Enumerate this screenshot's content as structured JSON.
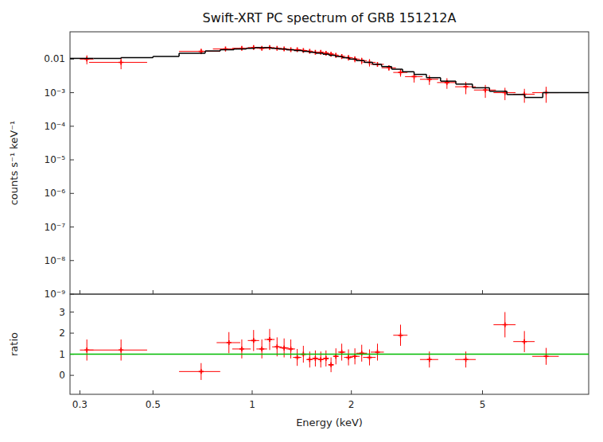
{
  "chart_data": [
    {
      "type": "scatter",
      "title": "Swift-XRT PC spectrum of GRB 151212A",
      "ylabel": "counts s⁻¹ keV⁻¹",
      "log": true,
      "xlim": [
        0.28,
        10.5
      ],
      "xticks": [
        0.3,
        0.5,
        1,
        2,
        5
      ],
      "ylim": [
        1e-09,
        0.065
      ],
      "yticks": [
        {
          "value": 1e-09,
          "label": "10⁻⁹"
        },
        {
          "value": 1e-08,
          "label": "10⁻⁸"
        },
        {
          "value": 1e-07,
          "label": "10⁻⁷"
        },
        {
          "value": 1e-06,
          "label": "10⁻⁶"
        },
        {
          "value": 1e-05,
          "label": "10⁻⁵"
        },
        {
          "value": 0.0001,
          "label": "10⁻⁴"
        },
        {
          "value": 0.001,
          "label": "10⁻³"
        },
        0.01
      ],
      "tick_labels": "y",
      "series": [
        {
          "type": "scatter",
          "color": "#ff0000",
          "marker": "plus",
          "x": [
            0.315,
            0.4,
            0.7,
            0.83,
            0.93,
            1.01,
            1.07,
            1.13,
            1.19,
            1.25,
            1.31,
            1.37,
            1.43,
            1.495,
            1.555,
            1.615,
            1.675,
            1.735,
            1.795,
            1.87,
            1.96,
            2.05,
            2.15,
            2.27,
            2.4,
            2.6,
            2.82,
            3.1,
            3.45,
            3.9,
            4.45,
            5.1,
            5.85,
            6.7,
            7.8
          ],
          "x_err_low": [
            0.015,
            0.08,
            0.1,
            0.07,
            0.06,
            0.04,
            0.04,
            0.04,
            0.04,
            0.04,
            0.04,
            0.04,
            0.04,
            0.035,
            0.035,
            0.035,
            0.035,
            0.035,
            0.035,
            0.05,
            0.06,
            0.07,
            0.08,
            0.1,
            0.11,
            0.13,
            0.14,
            0.19,
            0.22,
            0.26,
            0.32,
            0.39,
            0.45,
            0.5,
            0.72
          ],
          "x_err_high": [
            0.015,
            0.08,
            0.1,
            0.07,
            0.06,
            0.04,
            0.04,
            0.04,
            0.04,
            0.04,
            0.04,
            0.04,
            0.04,
            0.035,
            0.035,
            0.035,
            0.035,
            0.035,
            0.035,
            0.05,
            0.06,
            0.07,
            0.08,
            0.1,
            0.11,
            0.13,
            0.14,
            0.19,
            0.22,
            0.26,
            0.32,
            0.39,
            0.45,
            0.5,
            0.72
          ],
          "values": [
            0.01,
            0.008,
            0.017,
            0.02,
            0.021,
            0.022,
            0.021,
            0.022,
            0.021,
            0.02,
            0.019,
            0.019,
            0.018,
            0.017,
            0.016,
            0.016,
            0.015,
            0.014,
            0.013,
            0.012,
            0.011,
            0.01,
            0.009,
            0.008,
            0.007,
            0.0055,
            0.004,
            0.003,
            0.0025,
            0.002,
            0.0015,
            0.0012,
            0.001,
            0.0009,
            0.001
          ],
          "err_low": [
            0.003,
            0.003,
            0.003,
            0.003,
            0.002,
            0.002,
            0.002,
            0.002,
            0.002,
            0.002,
            0.002,
            0.002,
            0.002,
            0.002,
            0.002,
            0.002,
            0.002,
            0.002,
            0.002,
            0.002,
            0.002,
            0.002,
            0.002,
            0.002,
            0.001,
            0.001,
            0.001,
            0.001,
            0.0008,
            0.0007,
            0.0006,
            0.0005,
            0.0004,
            0.0004,
            0.0005
          ],
          "err_high": [
            0.003,
            0.003,
            0.003,
            0.003,
            0.002,
            0.002,
            0.002,
            0.002,
            0.002,
            0.002,
            0.002,
            0.002,
            0.002,
            0.002,
            0.002,
            0.002,
            0.002,
            0.002,
            0.002,
            0.002,
            0.002,
            0.002,
            0.002,
            0.002,
            0.001,
            0.001,
            0.001,
            0.001,
            0.0008,
            0.0007,
            0.0006,
            0.0005,
            0.0004,
            0.0004,
            0.0005
          ]
        },
        {
          "type": "step",
          "color": "#000000",
          "bins": [
            0.28,
            0.33,
            0.4,
            0.5,
            0.6,
            0.72,
            0.8,
            0.88,
            0.96,
            1.02,
            1.08,
            1.14,
            1.2,
            1.27,
            1.34,
            1.42,
            1.49,
            1.56,
            1.64,
            1.71,
            1.79,
            1.88,
            1.97,
            2.07,
            2.19,
            2.32,
            2.47,
            2.65,
            2.86,
            3.1,
            3.38,
            3.73,
            4.15,
            4.66,
            5.25,
            5.93,
            6.72,
            7.62,
            10.5
          ],
          "values": [
            0.0105,
            0.0105,
            0.011,
            0.012,
            0.015,
            0.0175,
            0.019,
            0.02,
            0.021,
            0.022,
            0.022,
            0.021,
            0.02,
            0.019,
            0.018,
            0.017,
            0.016,
            0.015,
            0.014,
            0.013,
            0.012,
            0.011,
            0.01,
            0.009,
            0.008,
            0.007,
            0.006,
            0.005,
            0.0042,
            0.0035,
            0.0028,
            0.0022,
            0.0018,
            0.0014,
            0.0011,
            0.00088,
            0.00072,
            0.001
          ]
        }
      ]
    },
    {
      "type": "scatter",
      "xlabel": "Energy (keV)",
      "ylabel": "ratio",
      "log": "x",
      "xlim": [
        0.28,
        10.5
      ],
      "xticks": [
        0.3,
        0.5,
        1,
        2,
        5
      ],
      "ylim": [
        -0.9,
        3.85
      ],
      "yticks": [
        0,
        1,
        2,
        3
      ],
      "series": [
        {
          "type": "scatter",
          "color": "#ff0000",
          "marker": "plus",
          "x": [
            0.315,
            0.4,
            0.7,
            0.85,
            0.93,
            1.01,
            1.07,
            1.13,
            1.19,
            1.25,
            1.31,
            1.37,
            1.43,
            1.495,
            1.555,
            1.615,
            1.675,
            1.735,
            1.795,
            1.87,
            1.96,
            2.05,
            2.15,
            2.27,
            2.4,
            2.82,
            3.45,
            4.45,
            5.85,
            6.7,
            7.8
          ],
          "x_err_low": [
            0.015,
            0.08,
            0.1,
            0.07,
            0.06,
            0.04,
            0.04,
            0.04,
            0.04,
            0.04,
            0.04,
            0.04,
            0.04,
            0.035,
            0.035,
            0.035,
            0.035,
            0.035,
            0.035,
            0.05,
            0.06,
            0.07,
            0.08,
            0.1,
            0.11,
            0.14,
            0.22,
            0.32,
            0.45,
            0.5,
            0.72
          ],
          "x_err_high": [
            0.015,
            0.08,
            0.1,
            0.07,
            0.06,
            0.04,
            0.04,
            0.04,
            0.04,
            0.04,
            0.04,
            0.04,
            0.04,
            0.035,
            0.035,
            0.035,
            0.035,
            0.035,
            0.035,
            0.05,
            0.06,
            0.07,
            0.08,
            0.1,
            0.11,
            0.14,
            0.22,
            0.32,
            0.45,
            0.5,
            0.72
          ],
          "values": [
            1.2,
            1.2,
            0.18,
            1.55,
            1.25,
            1.65,
            1.25,
            1.7,
            1.35,
            1.3,
            1.25,
            0.85,
            1.0,
            0.75,
            0.8,
            0.75,
            0.8,
            0.5,
            0.9,
            1.1,
            0.85,
            0.9,
            1.05,
            0.85,
            1.1,
            1.9,
            0.75,
            0.75,
            2.4,
            1.6,
            0.9
          ],
          "err_low": [
            0.5,
            0.5,
            0.4,
            0.5,
            0.45,
            0.5,
            0.45,
            0.5,
            0.45,
            0.45,
            0.45,
            0.4,
            0.4,
            0.38,
            0.38,
            0.38,
            0.38,
            0.35,
            0.38,
            0.4,
            0.38,
            0.38,
            0.4,
            0.38,
            0.4,
            0.5,
            0.38,
            0.38,
            0.6,
            0.5,
            0.4
          ],
          "err_high": [
            0.5,
            0.5,
            0.4,
            0.5,
            0.45,
            0.5,
            0.45,
            0.5,
            0.45,
            0.45,
            0.45,
            0.4,
            0.4,
            0.38,
            0.38,
            0.38,
            0.38,
            0.35,
            0.38,
            0.4,
            0.38,
            0.38,
            0.4,
            0.38,
            0.4,
            0.5,
            0.38,
            0.38,
            0.6,
            0.5,
            0.4
          ]
        },
        {
          "type": "hline",
          "color": "#00bb00",
          "values": [
            1.0
          ]
        }
      ]
    }
  ]
}
